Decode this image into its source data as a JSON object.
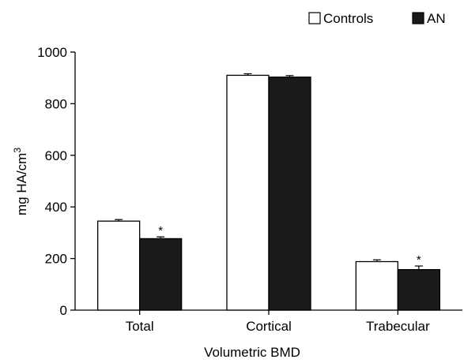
{
  "chart_data": {
    "type": "bar",
    "title": "",
    "xlabel": "Volumetric BMD",
    "ylabel": "mg HA/cm",
    "ylabel_superscript": "3",
    "ylim": [
      0,
      1000
    ],
    "yticks": [
      0,
      200,
      400,
      600,
      800,
      1000
    ],
    "ytick_labels": [
      "0",
      "200",
      "400",
      "600",
      "800",
      "1000"
    ],
    "categories": [
      "Total",
      "Cortical",
      "Trabecular"
    ],
    "series": [
      {
        "name": "Controls",
        "color": "#ffffff",
        "values": [
          345,
          910,
          188
        ],
        "errors": [
          6,
          6,
          7
        ]
      },
      {
        "name": "AN",
        "color": "#1a1a1a",
        "values": [
          277,
          903,
          157
        ],
        "errors": [
          7,
          6,
          14
        ]
      }
    ],
    "annotations": [
      {
        "series": 1,
        "category": 0,
        "text": "*"
      },
      {
        "series": 1,
        "category": 2,
        "text": "*"
      }
    ],
    "legend": {
      "placement": "top-right",
      "orientation": "horizontal"
    },
    "grid": false
  }
}
